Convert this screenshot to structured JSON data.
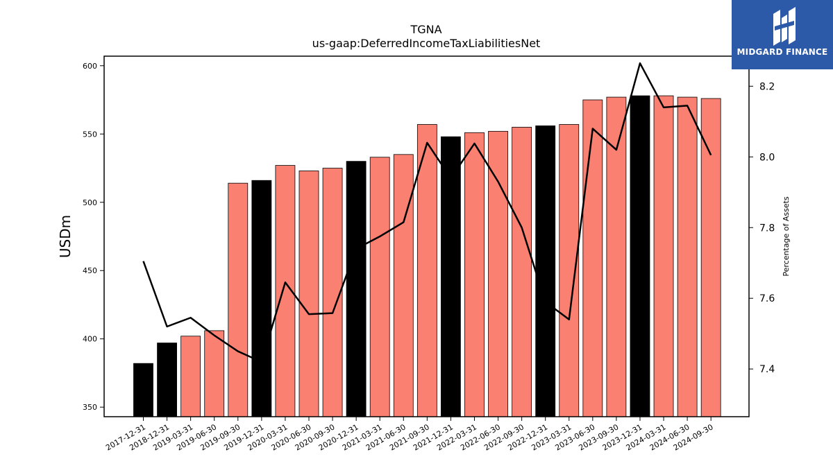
{
  "logo": {
    "text": "MIDGARD FINANCE",
    "bg_color": "#2d5aa8"
  },
  "chart_data": {
    "type": "bar",
    "title": "TGNA",
    "subtitle": "us-gaap:DeferredIncomeTaxLiabilitiesNet",
    "ylabel": "USDm",
    "y2label": "Percentage of Assets",
    "ylim": [
      343,
      607
    ],
    "y2lim": [
      7.265,
      8.285
    ],
    "yticks": [
      350,
      400,
      450,
      500,
      550,
      600
    ],
    "y2ticks": [
      7.4,
      7.6,
      7.8,
      8.0,
      8.2
    ],
    "y2ticklabels": [
      "7.4",
      "7.6",
      "7.8",
      "8.0",
      "8.2"
    ],
    "grid": false,
    "categories": [
      "2017-12-31",
      "2018-12-31",
      "2019-03-31",
      "2019-06-30",
      "2019-09-30",
      "2019-12-31",
      "2020-03-31",
      "2020-06-30",
      "2020-09-30",
      "2020-12-31",
      "2021-03-31",
      "2021-06-30",
      "2021-09-30",
      "2021-12-31",
      "2022-03-31",
      "2022-06-30",
      "2022-09-30",
      "2022-12-31",
      "2023-03-31",
      "2023-06-30",
      "2023-09-30",
      "2023-12-31",
      "2024-03-31",
      "2024-06-30",
      "2024-09-30"
    ],
    "series": [
      {
        "type": "bar",
        "axis": "left",
        "values": [
          382,
          397,
          402,
          406,
          514,
          516,
          527,
          523,
          525,
          530,
          533,
          535,
          557,
          548,
          551,
          552,
          555,
          556,
          557,
          575,
          577,
          578,
          578,
          577,
          576
        ],
        "annual_color": "#000000",
        "quarter_color": "#fa8072",
        "annual": [
          true,
          true,
          false,
          false,
          false,
          true,
          false,
          false,
          false,
          true,
          false,
          false,
          false,
          true,
          false,
          false,
          false,
          true,
          false,
          false,
          false,
          true,
          false,
          false,
          false
        ]
      },
      {
        "type": "line",
        "axis": "right",
        "color": "#000000",
        "values": [
          7.705,
          7.52,
          7.545,
          7.495,
          7.45,
          7.42,
          7.645,
          7.555,
          7.558,
          7.74,
          7.775,
          7.815,
          8.04,
          7.94,
          8.038,
          7.93,
          7.8,
          7.59,
          7.54,
          8.08,
          8.02,
          8.265,
          8.14,
          8.145,
          8.005
        ]
      }
    ]
  }
}
